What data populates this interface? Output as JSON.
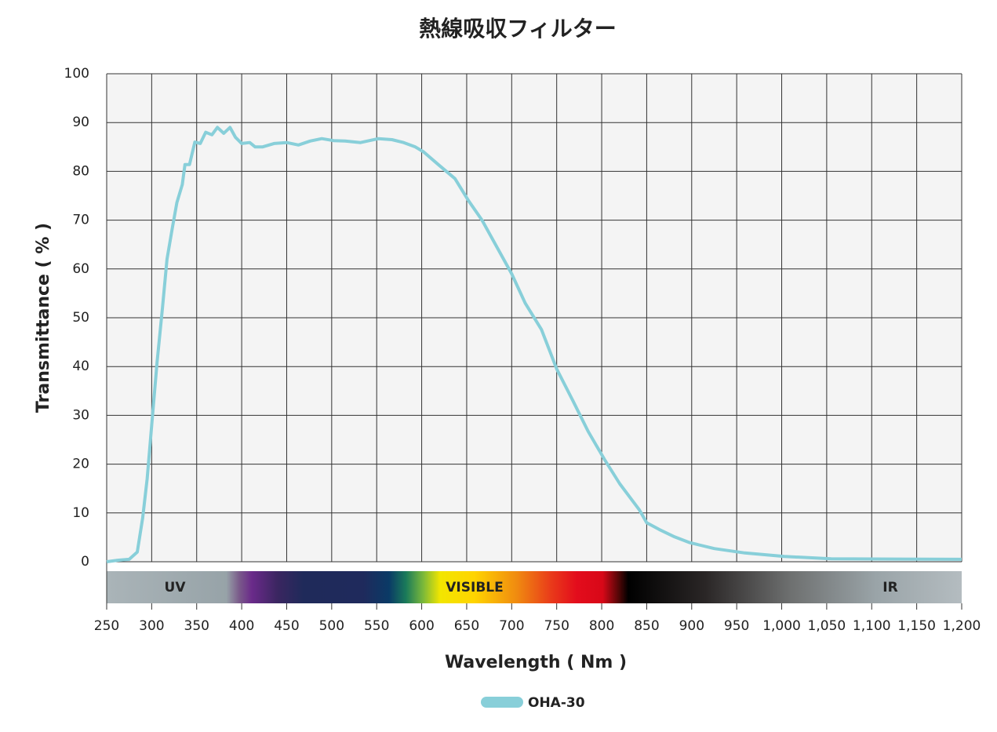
{
  "chart_data": {
    "type": "line",
    "title": "熱線吸収フィルター",
    "x_label": "Wavelength ( Nm )",
    "y_label": "Transmittance ( % )",
    "spectrum_labels": [
      "UV",
      "VISIBLE",
      "IR"
    ],
    "xlim": [
      250,
      1200
    ],
    "ylim": [
      0,
      100
    ],
    "xticks": [
      250,
      300,
      350,
      400,
      450,
      500,
      550,
      600,
      650,
      700,
      750,
      800,
      850,
      900,
      950,
      {
        "value": 1000,
        "label": "1,000"
      },
      {
        "value": 1050,
        "label": "1,050"
      },
      {
        "value": 1100,
        "label": "1,100"
      },
      {
        "value": 1150,
        "label": "1,150"
      },
      {
        "value": 1200,
        "label": "1,200"
      }
    ],
    "yticks": [
      0,
      10,
      20,
      30,
      40,
      50,
      60,
      70,
      80,
      90,
      100
    ],
    "grid": true,
    "legend": "bottom",
    "x": [
      250,
      262,
      275,
      284,
      290,
      295,
      300,
      306,
      312,
      317,
      323,
      328,
      334,
      337,
      342,
      348,
      354,
      360,
      367,
      373,
      380,
      387,
      393,
      400,
      409,
      415,
      423,
      436,
      450,
      463,
      476,
      489,
      502,
      515,
      532,
      552,
      567,
      580,
      593,
      602,
      619,
      637,
      652,
      667,
      685,
      700,
      715,
      733,
      750,
      768,
      785,
      803,
      820,
      842,
      850,
      864,
      881,
      898,
      925,
      959,
      1003,
      1055,
      1200
    ],
    "series": [
      {
        "name": "OHA-30",
        "color": "#88cfd9",
        "values": [
          0,
          0.3,
          0.5,
          2,
          9,
          17,
          28,
          41,
          52,
          62,
          68.5,
          73.6,
          77.3,
          81.4,
          81.4,
          86,
          85.7,
          88,
          87.5,
          89,
          87.8,
          89,
          87,
          85.7,
          85.9,
          85,
          85,
          85.7,
          85.9,
          85.4,
          86.2,
          86.7,
          86.3,
          86.2,
          85.9,
          86.7,
          86.5,
          85.9,
          85,
          84,
          81.3,
          78.5,
          74,
          70,
          64,
          59,
          53,
          47.6,
          39.5,
          33,
          26.7,
          21,
          16,
          10.6,
          8,
          6.6,
          5.1,
          3.9,
          2.7,
          1.8,
          1.1,
          0.6,
          0.5
        ]
      }
    ]
  }
}
